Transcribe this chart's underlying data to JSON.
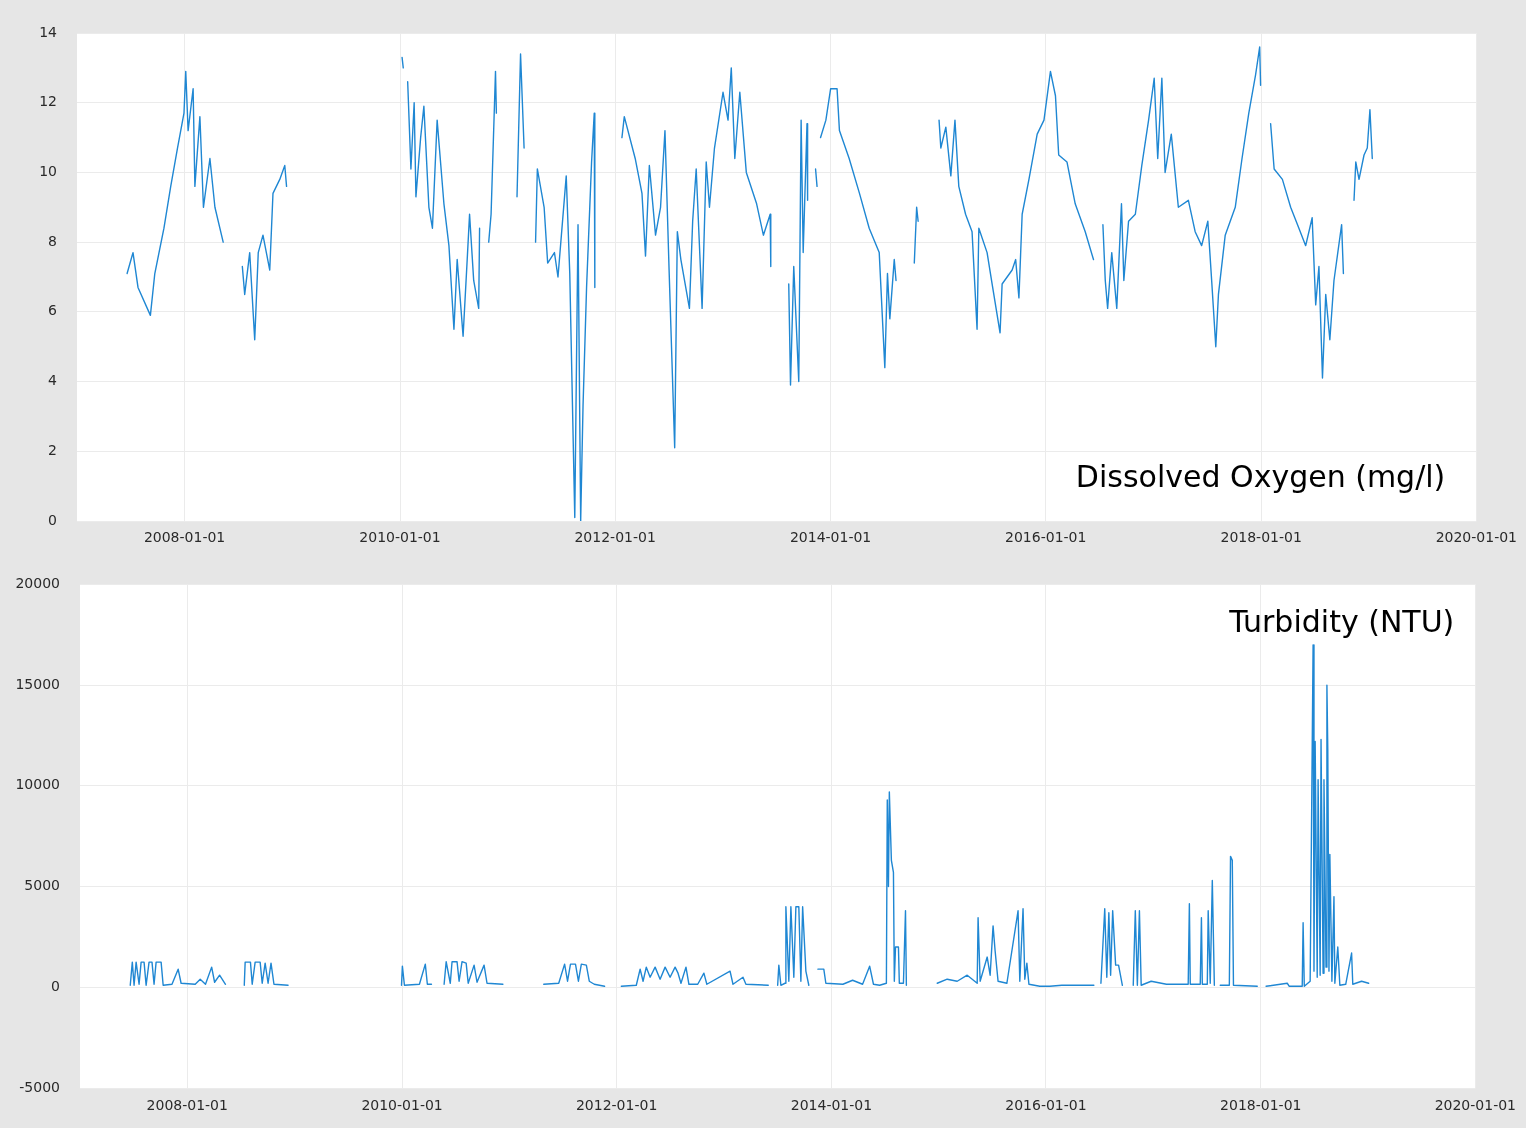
{
  "chart_data": [
    {
      "type": "line",
      "title": "Dissolved Oxygen (mg/l)",
      "color": "#1f87d3",
      "marker": "none",
      "grid": true,
      "xlim": [
        "2007-01-01",
        "2020-01-01"
      ],
      "xticks": [
        "2008-01-01",
        "2010-01-01",
        "2012-01-01",
        "2014-01-01",
        "2016-01-01",
        "2018-01-01",
        "2020-01-01"
      ],
      "ylim": [
        0,
        14
      ],
      "yticks": [
        0,
        2,
        4,
        6,
        8,
        10,
        12,
        14
      ],
      "x": [
        "2007-06-20",
        "2007-07-10",
        "2007-07-27",
        "2007-09-07",
        "2007-09-22",
        "2007-10-23",
        "2007-11-15",
        "2007-12-08",
        "2007-12-30",
        "2008-01-05",
        "2008-01-13",
        "2008-01-30",
        "2008-02-05",
        "2008-02-22",
        "2008-03-05",
        "2008-03-27",
        "2008-04-13",
        "2008-05-11",
        "2008-06-15",
        "2008-07-15",
        "2008-07-23",
        "2008-08-09",
        "2008-08-26",
        "2008-09-07",
        "2008-09-23",
        "2008-10-16",
        "2008-10-27",
        "2008-11-19",
        "2008-12-06",
        "2008-12-12",
        "2009-06-01",
        "2010-01-08",
        "2010-01-12",
        "2010-01-20",
        "2010-01-27",
        "2010-02-07",
        "2010-02-18",
        "2010-02-24",
        "2010-03-12",
        "2010-03-23",
        "2010-04-09",
        "2010-04-21",
        "2010-05-07",
        "2010-05-30",
        "2010-06-16",
        "2010-07-03",
        "2010-07-14",
        "2010-08-03",
        "2010-08-17",
        "2010-08-25",
        "2010-09-08",
        "2010-09-25",
        "2010-09-28",
        "2010-10-15",
        "2010-10-29",
        "2010-11-06",
        "2010-11-21",
        "2010-11-24",
        "2011-01-01",
        "2011-02-02",
        "2011-02-14",
        "2011-02-26",
        "2011-03-20",
        "2011-04-06",
        "2011-04-12",
        "2011-05-05",
        "2011-05-17",
        "2011-06-09",
        "2011-06-21",
        "2011-07-19",
        "2011-07-31",
        "2011-08-17",
        "2011-08-28",
        "2011-09-06",
        "2011-09-14",
        "2011-09-26",
        "2011-10-13",
        "2011-10-22",
        "2011-10-24",
        "2011-12-15",
        "2012-01-24",
        "2012-02-01",
        "2012-03-09",
        "2012-04-01",
        "2012-04-13",
        "2012-04-26",
        "2012-05-17",
        "2012-06-03",
        "2012-06-18",
        "2012-07-02",
        "2012-07-21",
        "2012-07-30",
        "2012-08-11",
        "2012-09-09",
        "2012-09-20",
        "2012-10-02",
        "2012-10-22",
        "2012-11-05",
        "2012-11-16",
        "2012-12-03",
        "2013-01-01",
        "2013-01-18",
        "2013-01-29",
        "2013-02-10",
        "2013-02-27",
        "2013-03-21",
        "2013-04-25",
        "2013-05-18",
        "2013-06-10",
        "2013-06-12",
        "2013-07-15",
        "2013-08-12",
        "2013-08-18",
        "2013-08-29",
        "2013-09-15",
        "2013-09-23",
        "2013-09-30",
        "2013-10-13",
        "2013-10-15",
        "2013-11-01",
        "2013-11-11",
        "2013-11-16",
        "2013-11-22",
        "2013-11-28",
        "2013-12-16",
        "2014-01-01",
        "2014-01-23",
        "2014-01-31",
        "2014-03-05",
        "2014-04-09",
        "2014-05-12",
        "2014-06-15",
        "2014-07-04",
        "2014-07-13",
        "2014-07-21",
        "2014-08-05",
        "2014-08-11",
        "2014-09-20",
        "2014-10-12",
        "2014-10-20",
        "2014-10-25",
        "2014-12-01",
        "2015-01-04",
        "2015-01-10",
        "2015-01-27",
        "2015-02-13",
        "2015-02-27",
        "2015-03-12",
        "2015-04-04",
        "2015-04-26",
        "2015-05-13",
        "2015-05-19",
        "2015-06-16",
        "2015-07-03",
        "2015-07-30",
        "2015-08-06",
        "2015-09-09",
        "2015-09-21",
        "2015-10-02",
        "2015-10-13",
        "2015-11-05",
        "2015-12-03",
        "2015-12-26",
        "2016-01-17",
        "2016-02-03",
        "2016-02-14",
        "2016-03-13",
        "2016-04-10",
        "2016-05-14",
        "2016-06-11",
        "2016-06-25",
        "2016-07-13",
        "2016-07-21",
        "2016-07-29",
        "2016-08-12",
        "2016-08-29",
        "2016-09-14",
        "2016-09-22",
        "2016-10-08",
        "2016-10-31",
        "2016-11-22",
        "2016-12-15",
        "2017-01-03",
        "2017-01-15",
        "2017-01-29",
        "2017-02-09",
        "2017-03-02",
        "2017-03-26",
        "2017-04-29",
        "2017-05-22",
        "2017-06-13",
        "2017-07-04",
        "2017-07-17",
        "2017-07-31",
        "2017-08-09",
        "2017-09-01",
        "2017-10-05",
        "2017-10-28",
        "2017-11-20",
        "2017-12-13",
        "2017-12-27",
        "2017-12-30",
        "2018-01-15",
        "2018-02-02",
        "2018-02-14",
        "2018-03-14",
        "2018-04-11",
        "2018-05-09",
        "2018-06-01",
        "2018-06-23",
        "2018-07-05",
        "2018-07-16",
        "2018-07-28",
        "2018-08-08",
        "2018-08-22",
        "2018-09-05",
        "2018-10-01",
        "2018-10-07",
        "2018-10-25",
        "2018-11-12",
        "2018-11-18",
        "2018-11-29",
        "2018-12-16",
        "2018-12-27",
        "2019-01-05",
        "2019-01-13"
      ],
      "values": [
        7.1,
        7.7,
        6.7,
        5.9,
        7.1,
        8.4,
        9.6,
        10.7,
        11.7,
        12.9,
        11.2,
        12.4,
        9.6,
        11.6,
        9.0,
        10.4,
        9.0,
        8.0,
        null,
        7.3,
        6.5,
        7.7,
        5.2,
        7.7,
        8.2,
        7.2,
        9.4,
        9.8,
        10.2,
        9.6,
        null,
        13.3,
        13.0,
        null,
        12.6,
        10.1,
        12.0,
        9.3,
        11.0,
        11.9,
        9.0,
        8.4,
        11.5,
        9.1,
        7.9,
        5.5,
        7.5,
        5.3,
        7.5,
        8.8,
        6.9,
        6.1,
        8.4,
        null,
        8.0,
        8.8,
        12.9,
        11.7,
        null,
        9.3,
        13.4,
        10.7,
        null,
        8.0,
        10.1,
        9.0,
        7.4,
        7.7,
        7.0,
        9.9,
        7.1,
        0.1,
        8.5,
        0.0,
        3.3,
        6.7,
        10.3,
        11.7,
        6.7,
        null,
        11.0,
        11.6,
        10.4,
        9.4,
        7.6,
        10.2,
        8.2,
        9.0,
        11.2,
        7.2,
        2.1,
        8.3,
        7.5,
        6.1,
        8.6,
        10.1,
        6.1,
        10.3,
        9.0,
        10.7,
        12.3,
        11.5,
        13.0,
        10.4,
        12.3,
        10.0,
        9.1,
        8.2,
        8.8,
        7.3,
        null,
        6.8,
        3.9,
        7.3,
        4.0,
        11.5,
        7.7,
        11.4,
        9.2,
        null,
        10.1,
        9.6,
        null,
        11.0,
        11.5,
        12.4,
        12.4,
        11.2,
        10.4,
        9.4,
        8.4,
        7.7,
        4.4,
        7.1,
        5.8,
        7.5,
        6.9,
        null,
        7.4,
        9.0,
        8.6,
        null,
        11.5,
        10.7,
        11.3,
        9.9,
        11.5,
        9.6,
        8.8,
        8.3,
        5.5,
        8.4,
        7.7,
        6.8,
        5.4,
        6.8,
        7.2,
        7.5,
        6.4,
        8.8,
        9.8,
        11.1,
        11.5,
        12.9,
        12.2,
        10.5,
        10.3,
        9.1,
        8.3,
        7.5,
        null,
        8.5,
        6.9,
        6.1,
        7.7,
        6.1,
        9.1,
        6.9,
        8.6,
        8.8,
        10.2,
        11.5,
        12.7,
        10.4,
        12.7,
        10.0,
        11.1,
        9.0,
        9.2,
        8.3,
        7.9,
        8.6,
        6.9,
        5.0,
        6.5,
        8.2,
        9.0,
        10.4,
        11.7,
        12.8,
        13.6,
        12.5,
        null,
        11.4,
        10.1,
        9.8,
        9.0,
        8.4,
        7.9,
        8.7,
        6.2,
        7.3,
        4.1,
        6.5,
        5.2,
        6.9,
        8.5,
        7.1,
        null,
        9.2,
        10.3,
        9.8,
        10.5,
        10.7,
        11.8,
        10.4
      ]
    },
    {
      "type": "line",
      "title": "Turbidity (NTU)",
      "color": "#1f87d3",
      "marker": "none",
      "grid": true,
      "xlim": [
        "2007-01-01",
        "2020-01-01"
      ],
      "xticks": [
        "2008-01-01",
        "2010-01-01",
        "2012-01-01",
        "2014-01-01",
        "2016-01-01",
        "2018-01-01",
        "2020-01-01"
      ],
      "ylim": [
        -5000,
        20000
      ],
      "yticks": [
        -5000,
        0,
        5000,
        10000,
        15000,
        20000
      ],
      "x": [
        "2007-06-21",
        "2007-06-28",
        "2007-07-04",
        "2007-07-11",
        "2007-07-21",
        "2007-07-28",
        "2007-08-07",
        "2007-08-14",
        "2007-08-24",
        "2007-09-03",
        "2007-09-10",
        "2007-09-17",
        "2007-10-04",
        "2007-10-11",
        "2007-11-10",
        "2007-12-01",
        "2007-12-11",
        "2008-01-28",
        "2008-02-14",
        "2008-03-03",
        "2008-03-24",
        "2008-04-03",
        "2008-04-20",
        "2008-05-10",
        "2008-06-10",
        "2008-07-13",
        "2008-07-16",
        "2008-08-03",
        "2008-08-09",
        "2008-08-19",
        "2008-09-05",
        "2008-09-12",
        "2008-09-22",
        "2008-10-02",
        "2008-10-12",
        "2008-10-22",
        "2008-12-09",
        "2009-06-01",
        "2009-12-30",
        "2010-01-02",
        "2010-01-09",
        "2010-03-01",
        "2010-03-21",
        "2010-03-28",
        "2010-04-11",
        "2010-05-01",
        "2010-05-24",
        "2010-05-31",
        "2010-06-14",
        "2010-06-20",
        "2010-07-07",
        "2010-07-14",
        "2010-07-24",
        "2010-08-07",
        "2010-08-14",
        "2010-09-03",
        "2010-09-13",
        "2010-10-07",
        "2010-10-17",
        "2010-12-10",
        "2011-02-01",
        "2011-04-28",
        "2011-06-18",
        "2011-07-08",
        "2011-07-18",
        "2011-07-28",
        "2011-08-14",
        "2011-08-24",
        "2011-09-03",
        "2011-09-20",
        "2011-09-30",
        "2011-10-17",
        "2011-11-21",
        "2011-12-20",
        "2012-01-17",
        "2012-03-08",
        "2012-03-21",
        "2012-03-31",
        "2012-04-11",
        "2012-04-24",
        "2012-05-11",
        "2012-05-28",
        "2012-06-14",
        "2012-07-01",
        "2012-07-18",
        "2012-07-28",
        "2012-08-07",
        "2012-08-24",
        "2012-09-03",
        "2012-10-03",
        "2012-10-24",
        "2012-11-03",
        "2013-01-21",
        "2013-01-31",
        "2013-03-06",
        "2013-03-16",
        "2013-05-31",
        "2013-06-15",
        "2013-07-02",
        "2013-07-06",
        "2013-07-13",
        "2013-07-27",
        "2013-07-30",
        "2013-08-09",
        "2013-08-16",
        "2013-08-26",
        "2013-09-02",
        "2013-09-12",
        "2013-09-19",
        "2013-09-25",
        "2013-10-06",
        "2013-10-16",
        "2013-11-01",
        "2013-11-16",
        "2013-12-06",
        "2013-12-13",
        "2014-02-09",
        "2014-03-14",
        "2014-04-17",
        "2014-05-11",
        "2014-05-24",
        "2014-06-14",
        "2014-07-07",
        "2014-07-10",
        "2014-07-14",
        "2014-07-17",
        "2014-07-24",
        "2014-07-31",
        "2014-08-03",
        "2014-08-07",
        "2014-08-17",
        "2014-08-20",
        "2014-09-03",
        "2014-09-10",
        "2014-09-13",
        "2014-11-01",
        "2014-12-27",
        "2015-01-30",
        "2015-03-05",
        "2015-04-08",
        "2015-05-12",
        "2015-05-15",
        "2015-05-22",
        "2015-06-15",
        "2015-06-25",
        "2015-07-05",
        "2015-07-12",
        "2015-07-22",
        "2015-08-21",
        "2015-09-28",
        "2015-10-04",
        "2015-10-15",
        "2015-10-21",
        "2015-10-28",
        "2015-11-04",
        "2015-12-11",
        "2016-01-14",
        "2016-02-24",
        "2016-06-12",
        "2016-06-28",
        "2016-07-06",
        "2016-07-19",
        "2016-07-26",
        "2016-08-02",
        "2016-08-08",
        "2016-08-15",
        "2016-08-25",
        "2016-09-04",
        "2016-09-17",
        "2016-10-05",
        "2016-10-24",
        "2016-10-31",
        "2016-11-07",
        "2016-11-14",
        "2016-11-20",
        "2016-12-24",
        "2017-02-14",
        "2017-04-29",
        "2017-05-03",
        "2017-05-06",
        "2017-06-09",
        "2017-06-13",
        "2017-06-16",
        "2017-07-03",
        "2017-07-06",
        "2017-07-13",
        "2017-07-20",
        "2017-07-27",
        "2017-08-06",
        "2017-08-16",
        "2017-09-16",
        "2017-09-20",
        "2017-09-26",
        "2017-09-30",
        "2017-12-20",
        "2018-01-05",
        "2018-01-19",
        "2018-04-01",
        "2018-04-08",
        "2018-05-22",
        "2018-05-25",
        "2018-05-29",
        "2018-06-18",
        "2018-06-28",
        "2018-07-01",
        "2018-07-05",
        "2018-07-12",
        "2018-07-15",
        "2018-07-22",
        "2018-07-25",
        "2018-08-01",
        "2018-08-04",
        "2018-08-11",
        "2018-08-14",
        "2018-08-17",
        "2018-08-21",
        "2018-08-24",
        "2018-08-31",
        "2018-09-07",
        "2018-09-10",
        "2018-09-20",
        "2018-09-27",
        "2018-10-17",
        "2018-11-06",
        "2018-11-10",
        "2018-12-10",
        "2019-01-03"
      ],
      "values": [
        100,
        1250,
        100,
        1250,
        150,
        1250,
        1250,
        100,
        1250,
        1250,
        150,
        1250,
        1250,
        100,
        150,
        900,
        200,
        150,
        400,
        150,
        1000,
        250,
        600,
        150,
        null,
        100,
        1250,
        1250,
        150,
        1250,
        1250,
        200,
        1200,
        200,
        1200,
        150,
        100,
        null,
        100,
        1050,
        100,
        150,
        1150,
        150,
        150,
        null,
        150,
        1270,
        200,
        1270,
        1270,
        300,
        1270,
        1200,
        200,
        1100,
        250,
        1100,
        200,
        150,
        null,
        150,
        200,
        1150,
        300,
        1150,
        1150,
        300,
        1150,
        1100,
        300,
        150,
        50,
        null,
        50,
        100,
        900,
        300,
        1000,
        500,
        1000,
        400,
        1000,
        500,
        1000,
        700,
        200,
        1000,
        150,
        150,
        700,
        150,
        800,
        150,
        500,
        150,
        100,
        null,
        100,
        1100,
        100,
        200,
        4000,
        300,
        4000,
        500,
        4000,
        4000,
        300,
        4000,
        800,
        100,
        null,
        900,
        900,
        200,
        150,
        350,
        150,
        1050,
        150,
        100,
        200,
        9300,
        5000,
        9700,
        6300,
        5700,
        300,
        2000,
        2000,
        200,
        200,
        3800,
        100,
        null,
        200,
        400,
        300,
        600,
        200,
        3450,
        300,
        1500,
        600,
        3050,
        1800,
        300,
        200,
        3800,
        300,
        3900,
        400,
        1200,
        150,
        50,
        50,
        100,
        100,
        null,
        200,
        3900,
        500,
        3700,
        600,
        3800,
        1100,
        1100,
        100,
        null,
        100,
        3800,
        100,
        3800,
        100,
        300,
        150,
        150,
        4150,
        150,
        150,
        3450,
        150,
        150,
        3800,
        200,
        5300,
        100,
        null,
        100,
        100,
        6500,
        6300,
        100,
        50,
        null,
        50,
        200,
        50,
        50,
        3200,
        50,
        300,
        17000,
        800,
        12200,
        500,
        10300,
        600,
        12300,
        700,
        10300,
        1000,
        15000,
        11800,
        800,
        6600,
        300,
        4500,
        200,
        2000,
        100,
        150,
        1700,
        150,
        300,
        200
      ]
    }
  ]
}
